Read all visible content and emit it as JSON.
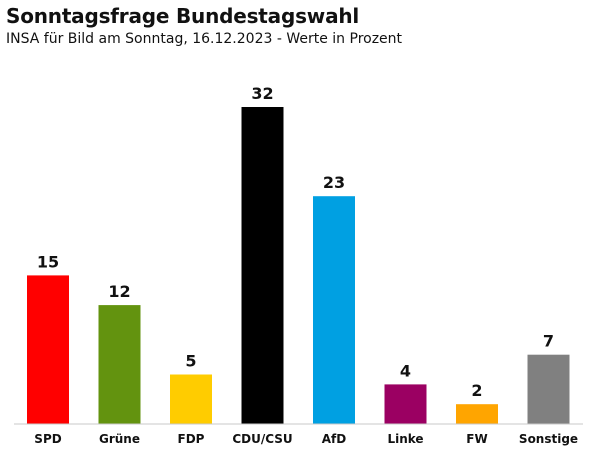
{
  "header": {
    "title": "Sonntagsfrage Bundestagswahl",
    "subtitle": "INSA für Bild am Sonntag, 16.12.2023 - Werte in Prozent"
  },
  "chart_data": {
    "type": "bar",
    "title": "Sonntagsfrage Bundestagswahl",
    "subtitle": "INSA für Bild am Sonntag, 16.12.2023 - Werte in Prozent",
    "categories": [
      "SPD",
      "Grüne",
      "FDP",
      "CDU/CSU",
      "AfD",
      "Linke",
      "FW",
      "Sonstige"
    ],
    "values": [
      15,
      12,
      5,
      32,
      23,
      4,
      2,
      7
    ],
    "colors": [
      "#ff0000",
      "#63930f",
      "#ffcc00",
      "#000000",
      "#00a0e2",
      "#9b0062",
      "#ffa500",
      "#808080"
    ],
    "xlabel": "",
    "ylabel": "",
    "ylim": [
      0,
      32
    ],
    "grid": false,
    "legend": "none"
  }
}
